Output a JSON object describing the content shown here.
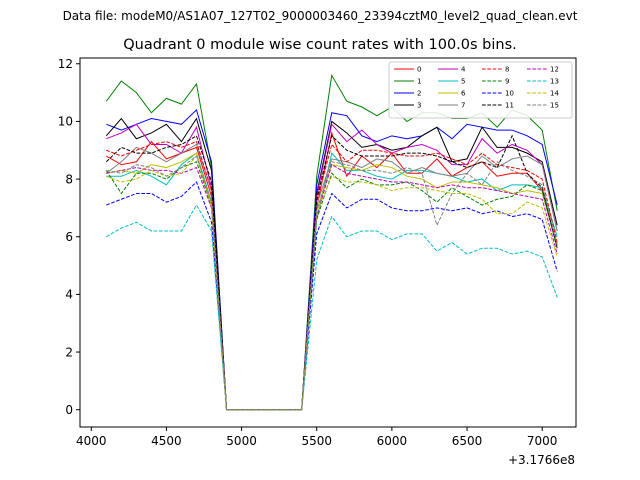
{
  "figure": {
    "suptitle": "Data file: modeM0/AS1A07_127T02_9000003460_23394cztM0_level2_quad_clean.evt",
    "x_offset_label": "+3.1766e8"
  },
  "chart_data": {
    "type": "line",
    "title": "Quadrant 0 module wise count rates with 100.0s bins.",
    "xlabel": "",
    "ylabel": "",
    "xlim": [
      3925,
      7225
    ],
    "ylim": [
      -0.6,
      12.2
    ],
    "x_ticks": [
      4000,
      4500,
      5000,
      5500,
      6000,
      6500,
      7000
    ],
    "y_ticks": [
      0,
      2,
      4,
      6,
      8,
      10,
      12
    ],
    "grid": false,
    "legend_position": "top-right",
    "x": [
      4100,
      4200,
      4300,
      4400,
      4500,
      4600,
      4700,
      4800,
      4900,
      5000,
      5100,
      5200,
      5300,
      5400,
      5500,
      5600,
      5700,
      5800,
      5900,
      6000,
      6100,
      6200,
      6300,
      6400,
      6500,
      6600,
      6700,
      6800,
      6900,
      7000,
      7100
    ],
    "series": [
      {
        "name": "0",
        "color": "#ff0000",
        "dash": "solid",
        "values": [
          8.8,
          8.5,
          8.6,
          9.3,
          8.7,
          8.9,
          9.1,
          7.4,
          0,
          0,
          0,
          0,
          0,
          0,
          7.0,
          9.6,
          8.1,
          8.8,
          8.4,
          8.9,
          8.2,
          8.2,
          8.7,
          8.1,
          8.4,
          8.6,
          8.1,
          8.2,
          8.2,
          7.6,
          5.7
        ]
      },
      {
        "name": "1",
        "color": "#008000",
        "dash": "solid",
        "values": [
          10.7,
          11.4,
          11.0,
          10.3,
          10.8,
          10.6,
          11.3,
          8.4,
          0,
          0,
          0,
          0,
          0,
          0,
          8.1,
          11.6,
          10.7,
          10.5,
          10.2,
          10.5,
          10.0,
          10.3,
          10.3,
          10.1,
          10.1,
          10.3,
          9.8,
          10.4,
          10.2,
          9.7,
          6.9
        ]
      },
      {
        "name": "2",
        "color": "#0000ff",
        "dash": "solid",
        "values": [
          9.9,
          9.7,
          9.9,
          10.1,
          10.0,
          9.9,
          10.4,
          8.6,
          0,
          0,
          0,
          0,
          0,
          0,
          7.8,
          10.3,
          10.2,
          9.5,
          9.3,
          9.5,
          9.4,
          9.5,
          9.8,
          9.4,
          9.9,
          9.8,
          9.7,
          9.7,
          9.5,
          9.2,
          7.1
        ]
      },
      {
        "name": "3",
        "color": "#000000",
        "dash": "solid",
        "values": [
          9.5,
          10.1,
          9.4,
          9.6,
          9.9,
          9.3,
          10.1,
          8.3,
          0,
          0,
          0,
          0,
          0,
          0,
          7.5,
          10.0,
          9.6,
          9.1,
          9.2,
          9.0,
          9.1,
          9.5,
          9.8,
          8.6,
          8.7,
          9.8,
          9.1,
          9.1,
          8.9,
          8.6,
          6.4
        ]
      },
      {
        "name": "4",
        "color": "#bf00bf",
        "dash": "solid",
        "values": [
          9.4,
          9.6,
          9.9,
          9.2,
          9.2,
          8.9,
          9.8,
          7.7,
          0,
          0,
          0,
          0,
          0,
          0,
          7.4,
          9.9,
          9.3,
          9.7,
          9.2,
          8.9,
          9.1,
          9.2,
          9.0,
          8.5,
          8.5,
          9.4,
          8.9,
          9.2,
          9.0,
          8.5,
          6.2
        ]
      },
      {
        "name": "5",
        "color": "#00bfbf",
        "dash": "solid",
        "values": [
          8.1,
          8.1,
          8.3,
          8.1,
          7.8,
          8.5,
          8.9,
          7.2,
          0,
          0,
          0,
          0,
          0,
          0,
          6.6,
          8.9,
          8.3,
          8.3,
          8.1,
          8.0,
          8.3,
          8.3,
          8.2,
          8.1,
          7.9,
          8.0,
          7.6,
          7.8,
          7.8,
          7.7,
          6.0
        ]
      },
      {
        "name": "6",
        "color": "#bfbf00",
        "dash": "solid",
        "values": [
          8.2,
          8.3,
          8.2,
          8.5,
          8.4,
          8.6,
          8.9,
          7.0,
          0,
          0,
          0,
          0,
          0,
          0,
          6.9,
          8.5,
          8.4,
          8.3,
          8.5,
          8.4,
          8.1,
          8.0,
          7.7,
          7.9,
          7.9,
          7.8,
          7.7,
          7.5,
          7.6,
          7.5,
          5.7
        ]
      },
      {
        "name": "7",
        "color": "#808080",
        "dash": "solid",
        "values": [
          8.2,
          8.6,
          9.1,
          8.9,
          8.6,
          8.9,
          9.2,
          7.6,
          0,
          0,
          0,
          0,
          0,
          0,
          7.1,
          8.7,
          8.6,
          8.4,
          8.7,
          8.6,
          8.2,
          8.4,
          8.2,
          8.1,
          8.2,
          8.8,
          8.4,
          8.7,
          8.8,
          8.5,
          6.2
        ]
      },
      {
        "name": "8",
        "color": "#ff0000",
        "dash": "dashed",
        "values": [
          9.0,
          8.8,
          9.0,
          9.2,
          9.3,
          9.1,
          9.3,
          7.6,
          0,
          0,
          0,
          0,
          0,
          0,
          7.2,
          9.2,
          8.6,
          9.0,
          9.0,
          8.9,
          8.8,
          8.8,
          8.9,
          8.7,
          8.5,
          8.9,
          8.5,
          8.4,
          8.3,
          8.0,
          5.8
        ]
      },
      {
        "name": "9",
        "color": "#008000",
        "dash": "dashed",
        "values": [
          8.3,
          7.5,
          8.2,
          8.2,
          8.0,
          8.4,
          8.6,
          7.1,
          0,
          0,
          0,
          0,
          0,
          0,
          6.6,
          8.2,
          7.7,
          8.0,
          7.8,
          7.8,
          7.9,
          7.6,
          7.2,
          7.7,
          7.4,
          7.1,
          7.3,
          7.4,
          7.8,
          7.6,
          5.6
        ]
      },
      {
        "name": "10",
        "color": "#0000ff",
        "dash": "dashed",
        "values": [
          7.1,
          7.3,
          7.5,
          7.5,
          7.2,
          7.4,
          7.9,
          6.5,
          0,
          0,
          0,
          0,
          0,
          0,
          6.1,
          7.5,
          7.0,
          7.3,
          7.3,
          7.0,
          6.9,
          6.9,
          7.0,
          6.9,
          7.0,
          6.8,
          6.9,
          6.7,
          6.8,
          6.6,
          4.8
        ]
      },
      {
        "name": "11",
        "color": "#000000",
        "dash": "dashed",
        "values": [
          8.6,
          9.1,
          8.9,
          8.9,
          9.1,
          9.2,
          9.5,
          7.9,
          0,
          0,
          0,
          0,
          0,
          0,
          7.3,
          9.5,
          9.0,
          8.8,
          8.8,
          8.8,
          8.9,
          8.9,
          8.8,
          8.6,
          8.4,
          8.6,
          8.4,
          9.5,
          8.2,
          7.7,
          5.6
        ]
      },
      {
        "name": "12",
        "color": "#bf00bf",
        "dash": "dashed",
        "values": [
          8.2,
          8.3,
          8.4,
          8.3,
          8.3,
          8.2,
          8.4,
          7.0,
          0,
          0,
          0,
          0,
          0,
          0,
          6.7,
          8.5,
          8.2,
          8.1,
          8.0,
          7.9,
          7.9,
          7.8,
          7.7,
          7.8,
          7.7,
          7.7,
          7.6,
          7.5,
          7.4,
          7.3,
          5.4
        ]
      },
      {
        "name": "13",
        "color": "#00bfbf",
        "dash": "dashed",
        "values": [
          6.0,
          6.3,
          6.5,
          6.2,
          6.2,
          6.2,
          7.1,
          6.2,
          0,
          0,
          0,
          0,
          0,
          0,
          5.2,
          6.7,
          6.0,
          6.2,
          6.2,
          5.9,
          6.1,
          6.1,
          5.5,
          5.8,
          5.4,
          5.6,
          5.6,
          5.4,
          5.5,
          5.3,
          3.9
        ]
      },
      {
        "name": "14",
        "color": "#bfbf00",
        "dash": "dashed",
        "values": [
          8.1,
          7.9,
          8.0,
          8.3,
          8.1,
          8.2,
          8.8,
          7.1,
          0,
          0,
          0,
          0,
          0,
          0,
          6.8,
          8.1,
          7.9,
          7.9,
          7.8,
          7.6,
          7.7,
          7.7,
          7.6,
          7.5,
          7.5,
          7.3,
          6.8,
          6.8,
          7.2,
          7.0,
          5.3
        ]
      },
      {
        "name": "15",
        "color": "#808080",
        "dash": "dashed",
        "values": [
          8.3,
          8.2,
          8.5,
          8.4,
          8.1,
          8.4,
          8.8,
          7.2,
          0,
          0,
          0,
          0,
          0,
          0,
          6.9,
          8.6,
          8.5,
          8.3,
          8.3,
          8.2,
          8.4,
          8.2,
          6.4,
          7.5,
          8.2,
          7.8,
          8.6,
          8.3,
          8.1,
          7.8,
          5.7
        ]
      }
    ]
  }
}
